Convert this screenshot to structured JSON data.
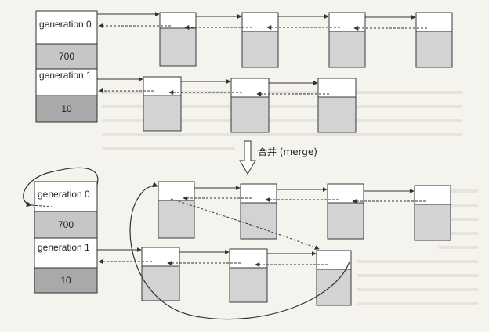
{
  "top_table": {
    "gen0_label": "generation 0",
    "gen0_count": "700",
    "gen1_label": "generation 1",
    "gen1_count": "10"
  },
  "merge_label": "合并 (merge)",
  "bottom_table": {
    "gen0_label": "generation 0",
    "gen0_count": "700",
    "gen1_label": "generation 1",
    "gen1_count": "10"
  }
}
